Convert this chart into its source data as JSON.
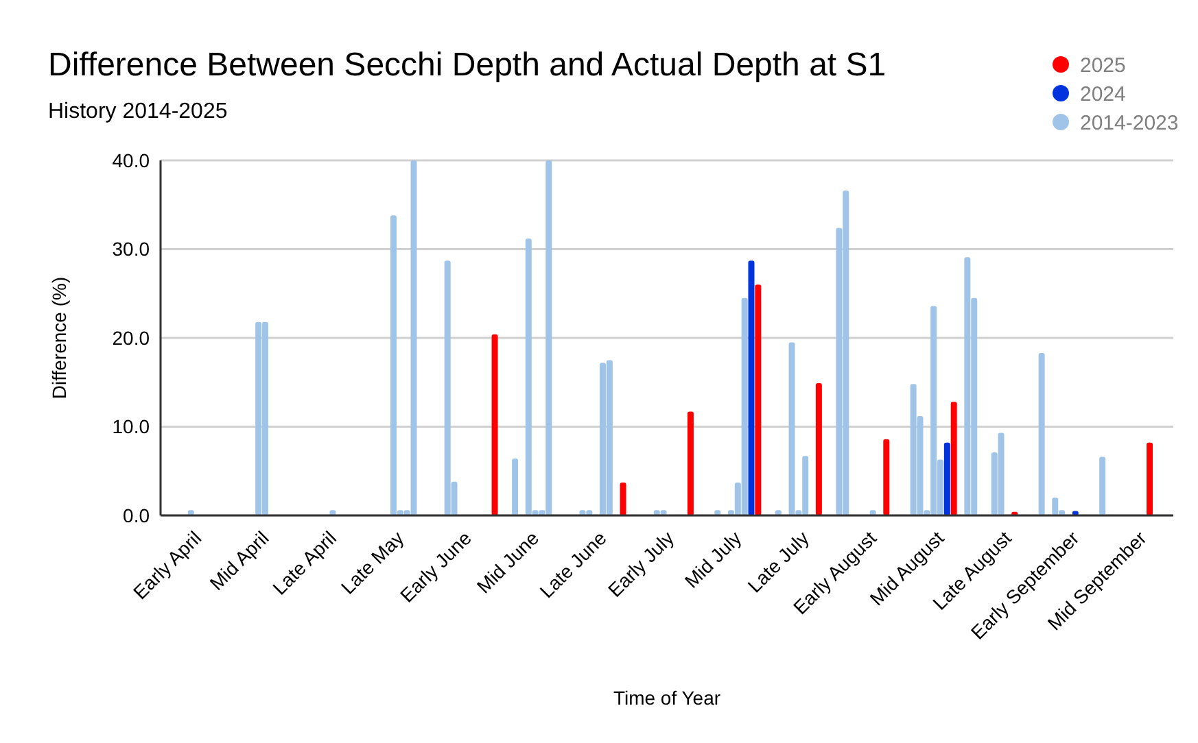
{
  "chart_data": {
    "type": "bar",
    "title": "Difference Between Secchi Depth and Actual Depth at S1",
    "subtitle": "History 2014-2025",
    "xlabel": "Time of Year",
    "ylabel": "Difference (%)",
    "categories": [
      null,
      null,
      null,
      null,
      null,
      "Early April",
      null,
      null,
      null,
      null,
      null,
      null,
      null,
      null,
      null,
      "Mid April",
      null,
      null,
      null,
      null,
      null,
      null,
      null,
      null,
      null,
      "Late April",
      null,
      null,
      null,
      null,
      null,
      null,
      null,
      null,
      null,
      "Late May",
      null,
      null,
      null,
      null,
      null,
      null,
      null,
      null,
      null,
      "Early June",
      null,
      null,
      null,
      null,
      null,
      null,
      null,
      null,
      null,
      "Mid June",
      null,
      null,
      null,
      null,
      null,
      null,
      null,
      null,
      null,
      "Late June",
      null,
      null,
      null,
      null,
      null,
      null,
      null,
      null,
      null,
      "Early July",
      null,
      null,
      null,
      null,
      null,
      null,
      null,
      null,
      null,
      "Mid July",
      null,
      null,
      null,
      null,
      null,
      null,
      null,
      null,
      null,
      "Late July",
      null,
      null,
      null,
      null,
      null,
      null,
      null,
      null,
      null,
      "Early August",
      null,
      null,
      null,
      null,
      null,
      null,
      null,
      null,
      null,
      "Mid August",
      null,
      null,
      null,
      null,
      null,
      null,
      null,
      null,
      null,
      "Late August",
      null,
      null,
      null,
      null,
      null,
      null,
      null,
      null,
      null,
      "Early September",
      null,
      null,
      null,
      null,
      null,
      null,
      null,
      null,
      null,
      "Mid September",
      null,
      null,
      null,
      null
    ],
    "ylim": [
      0,
      40
    ],
    "yticks": [
      {
        "value": 0,
        "label": "0.0"
      },
      {
        "value": 10,
        "label": "10.0"
      },
      {
        "value": 20,
        "label": "20.0"
      },
      {
        "value": 30,
        "label": "30.0"
      },
      {
        "value": 40,
        "label": "40.0"
      }
    ],
    "grid": "y",
    "legend": "top right",
    "marker": "circle",
    "series": [
      {
        "name": "2025",
        "color": "#ff0000",
        "values": [
          null,
          null,
          null,
          null,
          null,
          null,
          null,
          null,
          null,
          null,
          null,
          null,
          null,
          null,
          null,
          null,
          null,
          null,
          null,
          null,
          null,
          null,
          null,
          null,
          null,
          null,
          null,
          null,
          null,
          null,
          null,
          null,
          null,
          null,
          null,
          null,
          null,
          null,
          null,
          null,
          null,
          null,
          null,
          null,
          null,
          null,
          null,
          null,
          null,
          20.4,
          null,
          null,
          null,
          null,
          null,
          null,
          null,
          null,
          null,
          null,
          null,
          null,
          null,
          null,
          null,
          null,
          null,
          null,
          3.7,
          null,
          null,
          null,
          null,
          null,
          null,
          null,
          null,
          null,
          11.7,
          null,
          null,
          null,
          null,
          null,
          null,
          null,
          null,
          null,
          26.0,
          null,
          null,
          null,
          null,
          null,
          null,
          null,
          null,
          14.9,
          null,
          null,
          null,
          null,
          null,
          null,
          null,
          null,
          null,
          8.6,
          null,
          null,
          null,
          null,
          null,
          null,
          null,
          null,
          null,
          12.8,
          null,
          null,
          null,
          null,
          null,
          null,
          null,
          null,
          0.4,
          null,
          null,
          null,
          null,
          null,
          null,
          null,
          null,
          null,
          null,
          null,
          null,
          null,
          null,
          null,
          null,
          null,
          null,
          null,
          8.2,
          null,
          null,
          null
        ]
      },
      {
        "name": "2024",
        "color": "#0033dd",
        "values": [
          null,
          null,
          null,
          null,
          null,
          null,
          null,
          null,
          null,
          null,
          null,
          null,
          null,
          null,
          null,
          null,
          null,
          null,
          null,
          null,
          null,
          null,
          null,
          null,
          null,
          null,
          null,
          null,
          null,
          null,
          null,
          null,
          null,
          null,
          null,
          null,
          null,
          null,
          null,
          null,
          null,
          null,
          null,
          null,
          null,
          null,
          null,
          null,
          null,
          null,
          null,
          null,
          null,
          null,
          null,
          null,
          null,
          null,
          null,
          null,
          null,
          null,
          null,
          null,
          null,
          null,
          null,
          null,
          null,
          null,
          null,
          null,
          null,
          null,
          null,
          null,
          null,
          null,
          null,
          null,
          null,
          null,
          null,
          null,
          null,
          null,
          null,
          28.7,
          null,
          null,
          null,
          null,
          null,
          null,
          null,
          null,
          null,
          null,
          null,
          null,
          null,
          null,
          null,
          null,
          null,
          null,
          null,
          null,
          null,
          null,
          null,
          null,
          null,
          null,
          null,
          null,
          8.2,
          null,
          null,
          null,
          null,
          null,
          null,
          null,
          null,
          null,
          null,
          null,
          null,
          null,
          null,
          null,
          null,
          null,
          null,
          0.5,
          null,
          null,
          null,
          null,
          null,
          null,
          null,
          null,
          null,
          null,
          null,
          null,
          null,
          null
        ]
      },
      {
        "name": "2014-2023",
        "color": "#a0c4e8",
        "values": [
          null,
          null,
          null,
          null,
          0.6,
          null,
          null,
          null,
          null,
          null,
          null,
          null,
          null,
          null,
          21.8,
          21.8,
          null,
          null,
          null,
          null,
          null,
          null,
          null,
          null,
          null,
          0.6,
          null,
          null,
          null,
          null,
          null,
          null,
          null,
          null,
          33.8,
          0.6,
          0.6,
          40,
          null,
          null,
          null,
          null,
          28.7,
          3.8,
          null,
          null,
          null,
          null,
          null,
          null,
          null,
          null,
          6.4,
          null,
          31.2,
          0.6,
          0.6,
          40,
          null,
          null,
          null,
          null,
          0.6,
          0.6,
          null,
          17.2,
          17.5,
          null,
          null,
          null,
          null,
          null,
          null,
          0.6,
          0.6,
          null,
          null,
          null,
          null,
          null,
          null,
          null,
          0.6,
          null,
          0.6,
          3.7,
          24.5,
          null,
          null,
          null,
          null,
          0.6,
          null,
          19.5,
          0.6,
          6.7,
          null,
          null,
          null,
          null,
          32.4,
          36.6,
          null,
          null,
          null,
          0.6,
          null,
          null,
          null,
          null,
          null,
          14.8,
          11.2,
          0.6,
          23.6,
          6.3,
          null,
          null,
          null,
          29.1,
          24.5,
          null,
          null,
          7.1,
          9.3,
          null,
          null,
          null,
          null,
          null,
          18.3,
          null,
          2.0,
          0.6,
          null,
          null,
          null,
          null,
          null,
          6.6,
          null,
          null,
          null,
          null,
          null,
          null,
          null,
          null,
          null,
          null
        ]
      }
    ]
  }
}
